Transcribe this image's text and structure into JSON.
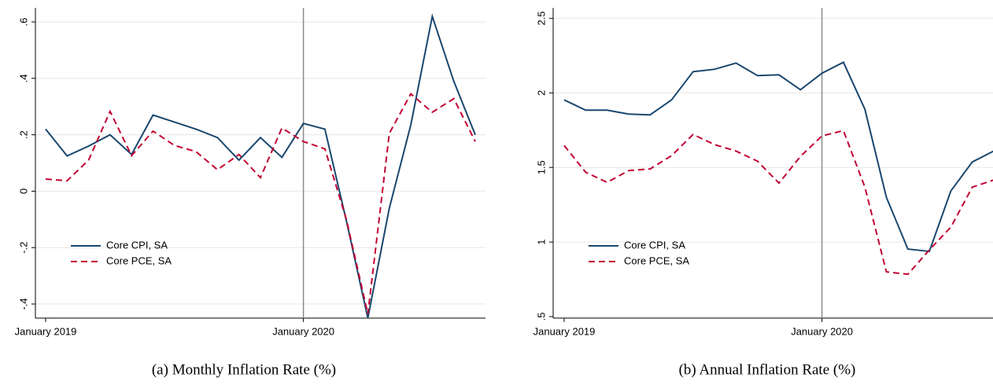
{
  "chart_data": [
    {
      "type": "line",
      "title": "(a) Monthly Inflation Rate (%)",
      "x": [
        "2019-01",
        "2019-02",
        "2019-03",
        "2019-04",
        "2019-05",
        "2019-06",
        "2019-07",
        "2019-08",
        "2019-09",
        "2019-10",
        "2019-11",
        "2019-12",
        "2020-01",
        "2020-02",
        "2020-03",
        "2020-04",
        "2020-05",
        "2020-06",
        "2020-07",
        "2020-08",
        "2020-09"
      ],
      "series": [
        {
          "name": "Core CPI, SA",
          "color": "#1a476f",
          "values": [
            0.22,
            0.125,
            0.16,
            0.2,
            0.13,
            0.27,
            0.245,
            0.22,
            0.19,
            0.11,
            0.19,
            0.12,
            0.24,
            0.22,
            -0.105,
            -0.45,
            -0.06,
            0.235,
            0.62,
            0.39,
            0.2
          ]
        },
        {
          "name": "Core PCE, SA",
          "color": "#c10534",
          "dash": true,
          "values": [
            0.043,
            0.037,
            0.11,
            0.283,
            0.126,
            0.213,
            0.162,
            0.14,
            0.076,
            0.13,
            0.048,
            0.224,
            0.176,
            0.15,
            -0.1,
            -0.435,
            0.205,
            0.345,
            0.28,
            0.328,
            0.176
          ]
        }
      ],
      "vline": "2020-01",
      "xticks": [
        {
          "value": "2019-01",
          "label": "January 2019"
        },
        {
          "value": "2020-01",
          "label": "January 2020"
        }
      ],
      "ylim": [
        -0.45,
        0.65
      ],
      "yticks": [
        {
          "value": -0.4,
          "label": "-.4"
        },
        {
          "value": -0.2,
          "label": "-.2"
        },
        0,
        {
          "value": 0.2,
          "label": ".2"
        },
        {
          "value": 0.4,
          "label": ".4"
        },
        {
          "value": 0.6,
          "label": ".6"
        }
      ],
      "grid": true,
      "legend": "lower-left"
    },
    {
      "type": "line",
      "title": "(b) Annual Inflation Rate (%)",
      "x": [
        "2019-01",
        "2019-02",
        "2019-03",
        "2019-04",
        "2019-05",
        "2019-06",
        "2019-07",
        "2019-08",
        "2019-09",
        "2019-10",
        "2019-11",
        "2019-12",
        "2020-01",
        "2020-02",
        "2020-03",
        "2020-04",
        "2020-05",
        "2020-06",
        "2020-07",
        "2020-08",
        "2020-09"
      ],
      "series": [
        {
          "name": "Core CPI, SA",
          "color": "#1a476f",
          "values": [
            1.953,
            1.884,
            1.884,
            1.858,
            1.853,
            1.953,
            2.142,
            2.158,
            2.2,
            2.116,
            2.121,
            2.021,
            2.132,
            2.205,
            1.89,
            1.3,
            0.953,
            0.937,
            1.342,
            1.537,
            1.61
          ]
        },
        {
          "name": "Core PCE, SA",
          "color": "#c10534",
          "dash": true,
          "values": [
            1.647,
            1.468,
            1.4,
            1.479,
            1.49,
            1.579,
            1.721,
            1.653,
            1.61,
            1.542,
            1.395,
            1.574,
            1.711,
            1.747,
            1.368,
            0.8,
            0.784,
            0.947,
            1.1,
            1.368,
            1.416
          ]
        }
      ],
      "vline": "2020-01",
      "xticks": [
        {
          "value": "2019-01",
          "label": "January 2019"
        },
        {
          "value": "2020-01",
          "label": "January 2020"
        }
      ],
      "ylim": [
        0.49,
        2.57
      ],
      "yticks": [
        {
          "value": 0.5,
          "label": ".5"
        },
        1,
        1.5,
        2,
        2.5
      ],
      "grid": true,
      "legend": "lower-left"
    }
  ]
}
